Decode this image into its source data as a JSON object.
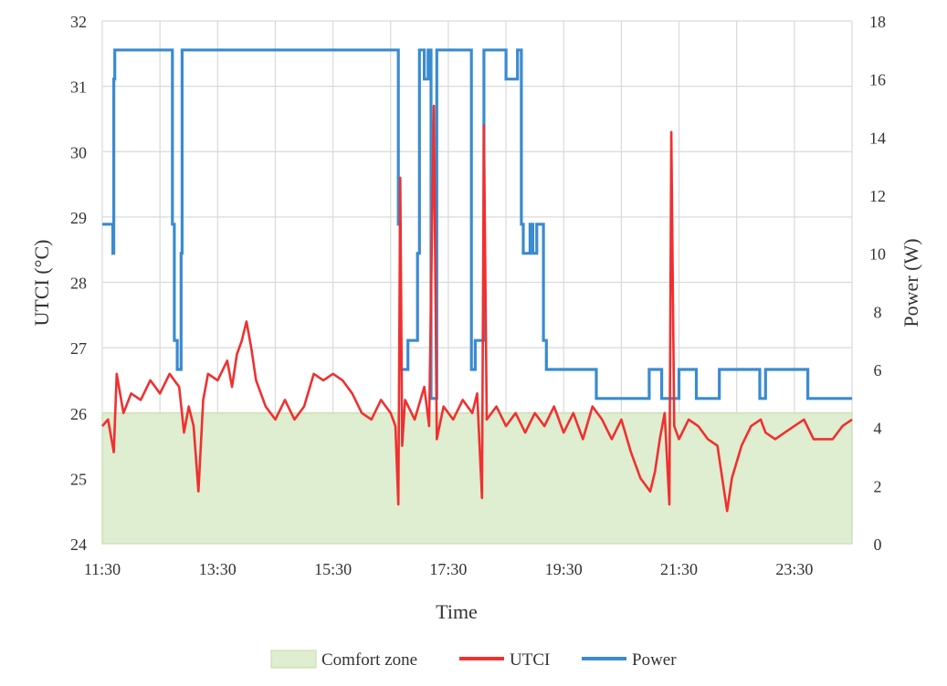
{
  "chart_data": {
    "type": "line",
    "xlabel": "Time",
    "ylabel_left": "UTCI  (°C)",
    "ylabel_right": "Power (W)",
    "x_tick_labels": [
      "11:30",
      "13:30",
      "15:30",
      "17:30",
      "19:30",
      "21:30",
      "23:30"
    ],
    "x_range": [
      "11:30",
      "24:30"
    ],
    "x_grid_step_minutes": 60,
    "ylim_left": [
      24,
      32
    ],
    "yticks_left": [
      "24",
      "25",
      "26",
      "27",
      "28",
      "29",
      "30",
      "31",
      "32"
    ],
    "ylim_right": [
      0,
      18
    ],
    "yticks_right": [
      "0",
      "2",
      "4",
      "6",
      "8",
      "10",
      "12",
      "14",
      "16",
      "18"
    ],
    "grid": true,
    "legend_position": "bottom",
    "comfort_zone": {
      "name": "Comfort zone",
      "utci_min": 24,
      "utci_max": 26,
      "color": "#dfedd0",
      "border": "#c3d9a6"
    },
    "series": [
      {
        "name": "UTCI",
        "axis": "left",
        "color": "#f03030",
        "points": [
          [
            "11:30",
            25.8
          ],
          [
            "11:36",
            25.9
          ],
          [
            "11:42",
            25.4
          ],
          [
            "11:45",
            26.6
          ],
          [
            "11:52",
            26.0
          ],
          [
            "12:00",
            26.3
          ],
          [
            "12:10",
            26.2
          ],
          [
            "12:20",
            26.5
          ],
          [
            "12:30",
            26.3
          ],
          [
            "12:40",
            26.6
          ],
          [
            "12:50",
            26.4
          ],
          [
            "12:55",
            25.7
          ],
          [
            "13:00",
            26.1
          ],
          [
            "13:05",
            25.8
          ],
          [
            "13:10",
            24.8
          ],
          [
            "13:15",
            26.2
          ],
          [
            "13:20",
            26.6
          ],
          [
            "13:30",
            26.5
          ],
          [
            "13:40",
            26.8
          ],
          [
            "13:45",
            26.4
          ],
          [
            "13:50",
            26.9
          ],
          [
            "13:55",
            27.1
          ],
          [
            "14:00",
            27.4
          ],
          [
            "14:05",
            27.0
          ],
          [
            "14:10",
            26.5
          ],
          [
            "14:20",
            26.1
          ],
          [
            "14:30",
            25.9
          ],
          [
            "14:40",
            26.2
          ],
          [
            "14:50",
            25.9
          ],
          [
            "15:00",
            26.1
          ],
          [
            "15:10",
            26.6
          ],
          [
            "15:20",
            26.5
          ],
          [
            "15:30",
            26.6
          ],
          [
            "15:40",
            26.5
          ],
          [
            "15:50",
            26.3
          ],
          [
            "16:00",
            26.0
          ],
          [
            "16:10",
            25.9
          ],
          [
            "16:20",
            26.2
          ],
          [
            "16:30",
            26.0
          ],
          [
            "16:35",
            25.8
          ],
          [
            "16:38",
            24.6
          ],
          [
            "16:40",
            29.6
          ],
          [
            "16:42",
            25.5
          ],
          [
            "16:45",
            26.2
          ],
          [
            "16:55",
            25.9
          ],
          [
            "17:05",
            26.4
          ],
          [
            "17:10",
            25.8
          ],
          [
            "17:15",
            30.7
          ],
          [
            "17:18",
            25.6
          ],
          [
            "17:25",
            26.1
          ],
          [
            "17:35",
            25.9
          ],
          [
            "17:45",
            26.2
          ],
          [
            "17:55",
            26.0
          ],
          [
            "18:00",
            26.3
          ],
          [
            "18:05",
            24.7
          ],
          [
            "18:07",
            30.4
          ],
          [
            "18:10",
            25.9
          ],
          [
            "18:20",
            26.1
          ],
          [
            "18:30",
            25.8
          ],
          [
            "18:40",
            26.0
          ],
          [
            "18:50",
            25.7
          ],
          [
            "19:00",
            26.0
          ],
          [
            "19:10",
            25.8
          ],
          [
            "19:20",
            26.1
          ],
          [
            "19:30",
            25.7
          ],
          [
            "19:40",
            26.0
          ],
          [
            "19:50",
            25.6
          ],
          [
            "20:00",
            26.1
          ],
          [
            "20:10",
            25.9
          ],
          [
            "20:20",
            25.6
          ],
          [
            "20:30",
            25.9
          ],
          [
            "20:40",
            25.4
          ],
          [
            "20:50",
            25.0
          ],
          [
            "21:00",
            24.8
          ],
          [
            "21:05",
            25.1
          ],
          [
            "21:10",
            25.6
          ],
          [
            "21:15",
            26.0
          ],
          [
            "21:20",
            24.6
          ],
          [
            "21:22",
            30.3
          ],
          [
            "21:25",
            25.8
          ],
          [
            "21:30",
            25.6
          ],
          [
            "21:40",
            25.9
          ],
          [
            "21:50",
            25.8
          ],
          [
            "22:00",
            25.6
          ],
          [
            "22:10",
            25.5
          ],
          [
            "22:20",
            24.5
          ],
          [
            "22:25",
            25.0
          ],
          [
            "22:35",
            25.5
          ],
          [
            "22:45",
            25.8
          ],
          [
            "22:55",
            25.9
          ],
          [
            "23:00",
            25.7
          ],
          [
            "23:10",
            25.6
          ],
          [
            "23:20",
            25.7
          ],
          [
            "23:30",
            25.8
          ],
          [
            "23:40",
            25.9
          ],
          [
            "23:50",
            25.6
          ],
          [
            "24:00",
            25.6
          ],
          [
            "24:10",
            25.6
          ],
          [
            "24:20",
            25.8
          ],
          [
            "24:30",
            25.9
          ]
        ]
      },
      {
        "name": "Power",
        "axis": "right",
        "color": "#3a8bd0",
        "points": [
          [
            "11:30",
            11
          ],
          [
            "11:41",
            11
          ],
          [
            "11:41",
            10
          ],
          [
            "11:42",
            10
          ],
          [
            "11:42",
            16
          ],
          [
            "11:43",
            16
          ],
          [
            "11:43",
            17
          ],
          [
            "12:43",
            17
          ],
          [
            "12:43",
            11
          ],
          [
            "12:45",
            11
          ],
          [
            "12:45",
            7
          ],
          [
            "12:48",
            7
          ],
          [
            "12:48",
            6
          ],
          [
            "12:52",
            6
          ],
          [
            "12:52",
            10
          ],
          [
            "12:53",
            10
          ],
          [
            "12:53",
            17
          ],
          [
            "16:38",
            17
          ],
          [
            "16:38",
            11
          ],
          [
            "16:40",
            11
          ],
          [
            "16:40",
            6
          ],
          [
            "16:48",
            6
          ],
          [
            "16:48",
            7
          ],
          [
            "16:58",
            7
          ],
          [
            "16:58",
            10
          ],
          [
            "17:00",
            10
          ],
          [
            "17:00",
            17
          ],
          [
            "17:05",
            17
          ],
          [
            "17:05",
            16
          ],
          [
            "17:09",
            16
          ],
          [
            "17:09",
            17
          ],
          [
            "17:12",
            17
          ],
          [
            "17:12",
            5
          ],
          [
            "17:18",
            5
          ],
          [
            "17:18",
            17
          ],
          [
            "17:54",
            17
          ],
          [
            "17:54",
            6
          ],
          [
            "17:58",
            6
          ],
          [
            "17:58",
            7
          ],
          [
            "18:07",
            7
          ],
          [
            "18:07",
            17
          ],
          [
            "18:30",
            17
          ],
          [
            "18:30",
            16
          ],
          [
            "18:42",
            16
          ],
          [
            "18:42",
            17
          ],
          [
            "18:46",
            17
          ],
          [
            "18:46",
            11
          ],
          [
            "18:48",
            11
          ],
          [
            "18:48",
            10
          ],
          [
            "18:55",
            10
          ],
          [
            "18:55",
            11
          ],
          [
            "18:58",
            11
          ],
          [
            "18:58",
            10
          ],
          [
            "19:02",
            10
          ],
          [
            "19:02",
            11
          ],
          [
            "19:09",
            11
          ],
          [
            "19:09",
            7
          ],
          [
            "19:12",
            7
          ],
          [
            "19:12",
            6
          ],
          [
            "20:04",
            6
          ],
          [
            "20:04",
            5
          ],
          [
            "20:59",
            5
          ],
          [
            "20:59",
            6
          ],
          [
            "21:12",
            6
          ],
          [
            "21:12",
            5
          ],
          [
            "21:30",
            5
          ],
          [
            "21:30",
            6
          ],
          [
            "21:48",
            6
          ],
          [
            "21:48",
            5
          ],
          [
            "22:12",
            5
          ],
          [
            "22:12",
            6
          ],
          [
            "22:54",
            6
          ],
          [
            "22:54",
            5
          ],
          [
            "23:00",
            5
          ],
          [
            "23:00",
            6
          ],
          [
            "23:44",
            6
          ],
          [
            "23:44",
            5
          ],
          [
            "24:30",
            5
          ]
        ]
      }
    ]
  }
}
